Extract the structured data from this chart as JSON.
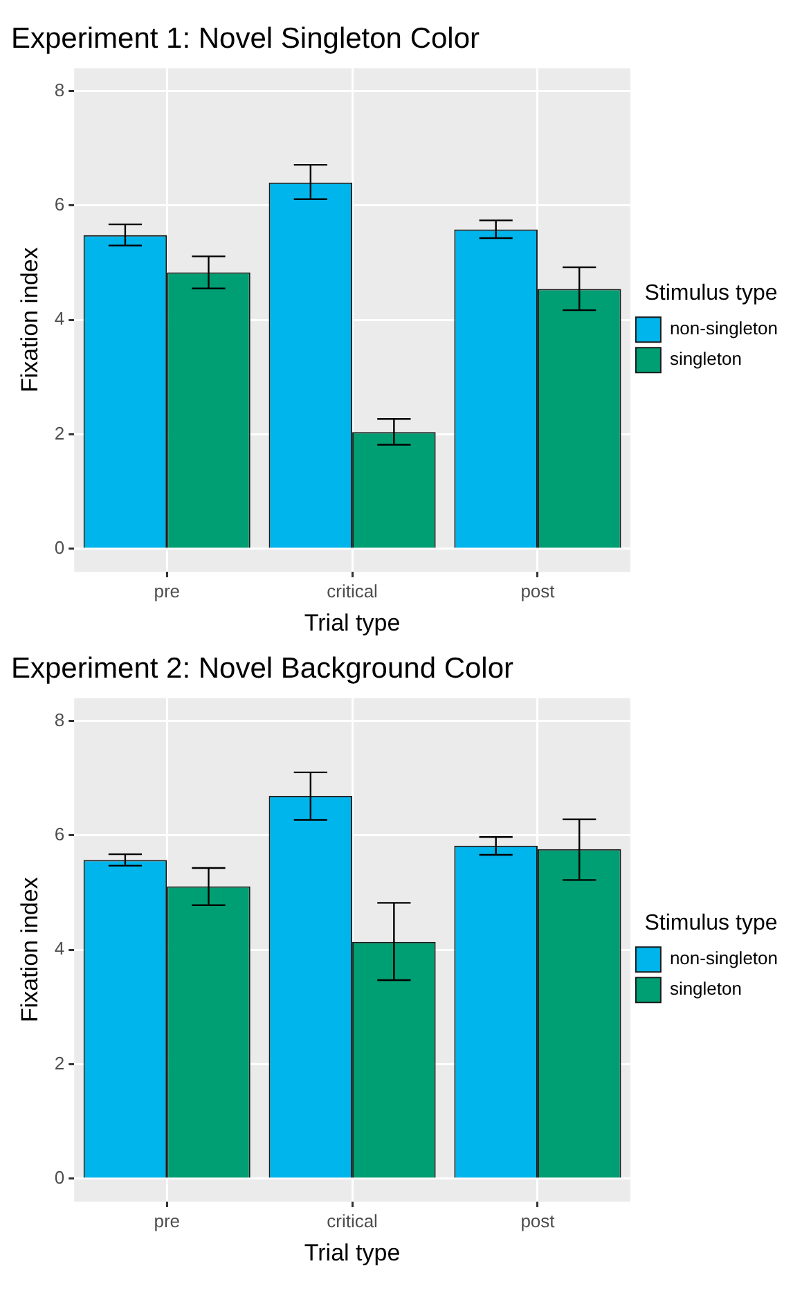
{
  "chart_data": [
    {
      "type": "bar",
      "title": "Experiment 1: Novel Singleton Color",
      "xlabel": "Trial type",
      "ylabel": "Fixation index",
      "legend_title": "Stimulus type",
      "categories": [
        "pre",
        "critical",
        "post"
      ],
      "series": [
        {
          "name": "non-singleton",
          "color": "#00b5eb",
          "values": [
            5.48,
            6.4,
            5.58
          ],
          "errors": [
            [
              5.3,
              5.67
            ],
            [
              6.11,
              6.71
            ],
            [
              5.43,
              5.74
            ]
          ]
        },
        {
          "name": "singleton",
          "color": "#009e73",
          "values": [
            4.83,
            2.04,
            4.54
          ],
          "errors": [
            [
              4.55,
              5.11
            ],
            [
              1.82,
              2.27
            ],
            [
              4.17,
              4.92
            ]
          ]
        }
      ],
      "ylim": [
        -0.4,
        8.4
      ],
      "yticks": [
        0,
        2,
        4,
        6,
        8
      ],
      "grid": true,
      "legend": "right"
    },
    {
      "type": "bar",
      "title": "Experiment 2: Novel Background Color",
      "xlabel": "Trial type",
      "ylabel": "Fixation index",
      "legend_title": "Stimulus type",
      "categories": [
        "pre",
        "critical",
        "post"
      ],
      "series": [
        {
          "name": "non-singleton",
          "color": "#00b5eb",
          "values": [
            5.57,
            6.69,
            5.82
          ],
          "errors": [
            [
              5.47,
              5.67
            ],
            [
              6.27,
              7.1
            ],
            [
              5.66,
              5.97
            ]
          ]
        },
        {
          "name": "singleton",
          "color": "#009e73",
          "values": [
            5.11,
            4.14,
            5.76
          ],
          "errors": [
            [
              4.78,
              5.43
            ],
            [
              3.47,
              4.82
            ],
            [
              5.22,
              6.28
            ]
          ]
        }
      ],
      "ylim": [
        -0.4,
        8.4
      ],
      "yticks": [
        0,
        2,
        4,
        6,
        8
      ],
      "grid": true,
      "legend": "right"
    }
  ]
}
